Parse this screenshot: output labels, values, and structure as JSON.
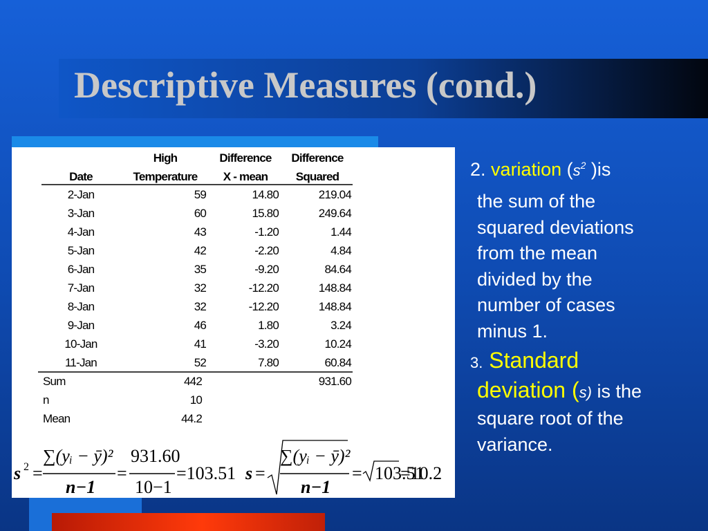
{
  "title": "Descriptive Measures (cond.)",
  "table": {
    "headers": [
      [
        "",
        "Date"
      ],
      [
        "High",
        "Temperature"
      ],
      [
        "Difference",
        "X - mean"
      ],
      [
        "Difference",
        "Squared"
      ]
    ],
    "rows": [
      [
        "2-Jan",
        "59",
        "14.80",
        "219.04"
      ],
      [
        "3-Jan",
        "60",
        "15.80",
        "249.64"
      ],
      [
        "4-Jan",
        "43",
        "-1.20",
        "1.44"
      ],
      [
        "5-Jan",
        "42",
        "-2.20",
        "4.84"
      ],
      [
        "6-Jan",
        "35",
        "-9.20",
        "84.64"
      ],
      [
        "7-Jan",
        "32",
        "-12.20",
        "148.84"
      ],
      [
        "8-Jan",
        "32",
        "-12.20",
        "148.84"
      ],
      [
        "9-Jan",
        "46",
        "1.80",
        "3.24"
      ],
      [
        "10-Jan",
        "41",
        "-3.20",
        "10.24"
      ],
      [
        "11-Jan",
        "52",
        "7.80",
        "60.84"
      ]
    ],
    "summary": [
      {
        "label": "Sum",
        "value": "442",
        "squared": "931.60"
      },
      {
        "label": "n",
        "value": "10"
      },
      {
        "label": "Mean",
        "value": "44.2"
      }
    ]
  },
  "formulas": {
    "variance": {
      "lhs": "s",
      "lhs_exp": "2",
      "eq": "=",
      "numerator": "∑(yᵢ − ȳ)²",
      "denominator": "n−1",
      "value_num": "931.60",
      "value_den": "10−1",
      "result": "=103.51"
    },
    "std": {
      "lhs": "s",
      "eq": "=",
      "numerator": "∑(yᵢ − ȳ)²",
      "denominator": "n−1",
      "radicand": "103.51",
      "result": "=10.2"
    }
  },
  "items": [
    {
      "number": "2.",
      "term": "variation",
      "symbol_open": "(",
      "symbol": "s",
      "symbol_exp": "2",
      "lead": " )is",
      "lines": [
        "the sum of the",
        "squared deviations",
        "from the mean",
        "divided by the",
        "number of cases",
        "minus 1."
      ]
    },
    {
      "number": "3.",
      "term": "Standard",
      "term2": "deviation",
      "symbol_open": "(",
      "symbol": "s)",
      "lead": " is the",
      "lines": [
        "square root of the",
        "variance."
      ]
    }
  ]
}
